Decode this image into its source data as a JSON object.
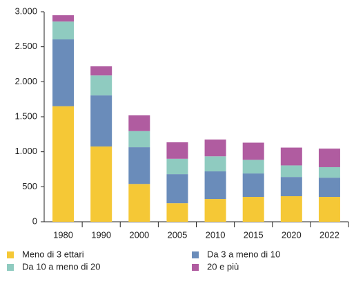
{
  "chart_data": {
    "type": "stacked-bar",
    "categories": [
      "1980",
      "1990",
      "2000",
      "2005",
      "2010",
      "2015",
      "2020",
      "2022"
    ],
    "series": [
      {
        "name": "Meno di 3 ettari",
        "color": "#f5c836",
        "values": [
          1650,
          1075,
          540,
          265,
          325,
          355,
          365,
          355
        ]
      },
      {
        "name": "Da 3 a meno di 10",
        "color": "#6a8cba",
        "values": [
          955,
          730,
          525,
          415,
          395,
          335,
          275,
          275
        ]
      },
      {
        "name": "Da 10 a meno di 20",
        "color": "#8fcbc0",
        "values": [
          255,
          285,
          230,
          220,
          215,
          195,
          165,
          150
        ]
      },
      {
        "name": "20 e più",
        "color": "#b05ca0",
        "values": [
          90,
          130,
          225,
          235,
          240,
          245,
          255,
          265
        ]
      }
    ],
    "ylim": [
      0,
      3000
    ],
    "yticks": [
      0,
      {
        "value": 500,
        "label": "500"
      },
      {
        "value": 1000,
        "label": "1.000"
      },
      {
        "value": 1500,
        "label": "1.500"
      },
      {
        "value": 2000,
        "label": "2.000"
      },
      {
        "value": 2500,
        "label": "2.500"
      },
      {
        "value": 3000,
        "label": "3.000"
      }
    ],
    "grid": false,
    "legend": "bottom"
  }
}
